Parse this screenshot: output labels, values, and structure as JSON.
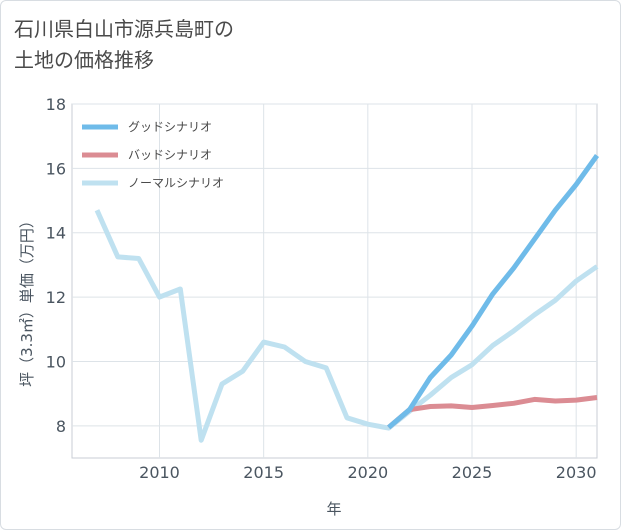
{
  "title": "石川県白山市源兵島町の\n土地の価格推移",
  "chart_data": {
    "type": "line",
    "xlabel": "年",
    "ylabel": "坪（3.3㎡）単価（万円）",
    "xlim": [
      2005.8,
      2031
    ],
    "ylim": [
      7,
      18
    ],
    "xticks": [
      2010,
      2015,
      2020,
      2025,
      2030
    ],
    "yticks": [
      8,
      10,
      12,
      14,
      16,
      18
    ],
    "grid": true,
    "legend_position": "top-left",
    "series": [
      {
        "name": "グッドシナリオ",
        "color": "#6fbbe9",
        "x": [
          2021,
          2022,
          2023,
          2024,
          2025,
          2026,
          2027,
          2028,
          2029,
          2030,
          2031
        ],
        "y": [
          7.95,
          8.5,
          9.5,
          10.2,
          11.1,
          12.1,
          12.9,
          13.8,
          14.7,
          15.5,
          16.4
        ]
      },
      {
        "name": "バッドシナリオ",
        "color": "#db8c93",
        "x": [
          2021,
          2022,
          2023,
          2024,
          2025,
          2026,
          2027,
          2028,
          2029,
          2030,
          2031
        ],
        "y": [
          7.95,
          8.5,
          8.6,
          8.62,
          8.57,
          8.63,
          8.7,
          8.82,
          8.77,
          8.8,
          8.88
        ]
      },
      {
        "name": "ノーマルシナリオ",
        "color": "#bfe1f0",
        "x": [
          2007,
          2008,
          2009,
          2010,
          2011,
          2012,
          2013,
          2014,
          2015,
          2016,
          2017,
          2018,
          2019,
          2020,
          2021,
          2022,
          2023,
          2024,
          2025,
          2026,
          2027,
          2028,
          2029,
          2030,
          2031
        ],
        "y": [
          14.7,
          13.25,
          13.2,
          12.0,
          12.25,
          7.55,
          9.3,
          9.7,
          10.6,
          10.45,
          10.0,
          9.8,
          8.25,
          8.05,
          7.93,
          8.45,
          8.95,
          9.5,
          9.9,
          10.5,
          10.95,
          11.45,
          11.9,
          12.5,
          12.95
        ]
      }
    ]
  }
}
